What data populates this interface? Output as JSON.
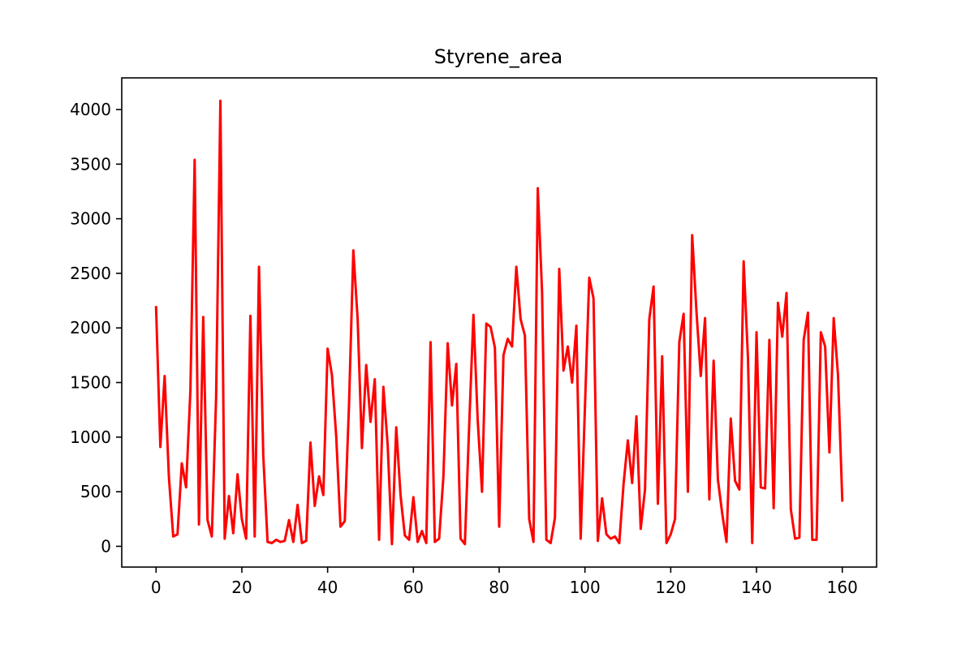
{
  "chart_data": {
    "type": "line",
    "title": "Styrene_area",
    "xlabel": "",
    "ylabel": "",
    "xlim": [
      -8,
      168
    ],
    "ylim": [
      -190,
      4290
    ],
    "xticks": [
      0,
      20,
      40,
      60,
      80,
      100,
      120,
      140,
      160
    ],
    "yticks": [
      0,
      500,
      1000,
      1500,
      2000,
      2500,
      3000,
      3500,
      4000
    ],
    "grid": false,
    "legend": "none",
    "series": [
      {
        "color": "#ff0000",
        "x": [
          0,
          1,
          2,
          3,
          4,
          5,
          6,
          7,
          8,
          9,
          10,
          11,
          12,
          13,
          14,
          15,
          16,
          17,
          18,
          19,
          20,
          21,
          22,
          23,
          24,
          25,
          26,
          27,
          28,
          29,
          30,
          31,
          32,
          33,
          34,
          35,
          36,
          37,
          38,
          39,
          40,
          41,
          42,
          43,
          44,
          45,
          46,
          47,
          48,
          49,
          50,
          51,
          52,
          53,
          54,
          55,
          56,
          57,
          58,
          59,
          60,
          61,
          62,
          63,
          64,
          65,
          66,
          67,
          68,
          69,
          70,
          71,
          72,
          73,
          74,
          75,
          76,
          77,
          78,
          79,
          80,
          81,
          82,
          83,
          84,
          85,
          86,
          87,
          88,
          89,
          90,
          91,
          92,
          93,
          94,
          95,
          96,
          97,
          98,
          99,
          100,
          101,
          102,
          103,
          104,
          105,
          106,
          107,
          108,
          109,
          110,
          111,
          112,
          113,
          114,
          115,
          116,
          117,
          118,
          119,
          120,
          121,
          122,
          123,
          124,
          125,
          126,
          127,
          128,
          129,
          130,
          131,
          132,
          133,
          134,
          135,
          136,
          137,
          138,
          139,
          140,
          141,
          142,
          143,
          144,
          145,
          146,
          147,
          148,
          149,
          150,
          151,
          152,
          153,
          154,
          155,
          156,
          157,
          158,
          159,
          160
        ],
        "y": [
          2190,
          910,
          1560,
          630,
          90,
          110,
          760,
          540,
          1420,
          3540,
          200,
          2100,
          240,
          90,
          1360,
          4080,
          70,
          460,
          120,
          660,
          250,
          70,
          2110,
          90,
          2560,
          830,
          40,
          30,
          60,
          40,
          50,
          240,
          40,
          380,
          30,
          50,
          950,
          370,
          640,
          470,
          1810,
          1570,
          1010,
          180,
          230,
          1310,
          2710,
          2080,
          900,
          1660,
          1140,
          1530,
          60,
          1460,
          930,
          20,
          1090,
          470,
          100,
          60,
          450,
          40,
          140,
          30,
          1870,
          40,
          70,
          640,
          1860,
          1290,
          1670,
          70,
          20,
          1100,
          2120,
          1150,
          500,
          2040,
          2010,
          1820,
          180,
          1750,
          1900,
          1830,
          2560,
          2080,
          1930,
          250,
          40,
          3280,
          2330,
          60,
          30,
          260,
          2540,
          1610,
          1830,
          1500,
          2020,
          70,
          1280,
          2460,
          2270,
          50,
          440,
          110,
          70,
          90,
          30,
          570,
          970,
          580,
          1190,
          160,
          520,
          2080,
          2380,
          390,
          1740,
          30,
          110,
          250,
          1870,
          2130,
          500,
          2850,
          2150,
          1560,
          2090,
          430,
          1700,
          610,
          300,
          40,
          1170,
          600,
          520,
          2610,
          1730,
          30,
          1960,
          540,
          530,
          1890,
          350,
          2230,
          1920,
          2320,
          340,
          70,
          80,
          1890,
          2140,
          60,
          60,
          1960,
          1830,
          860,
          2090,
          1570,
          420
        ]
      }
    ]
  }
}
